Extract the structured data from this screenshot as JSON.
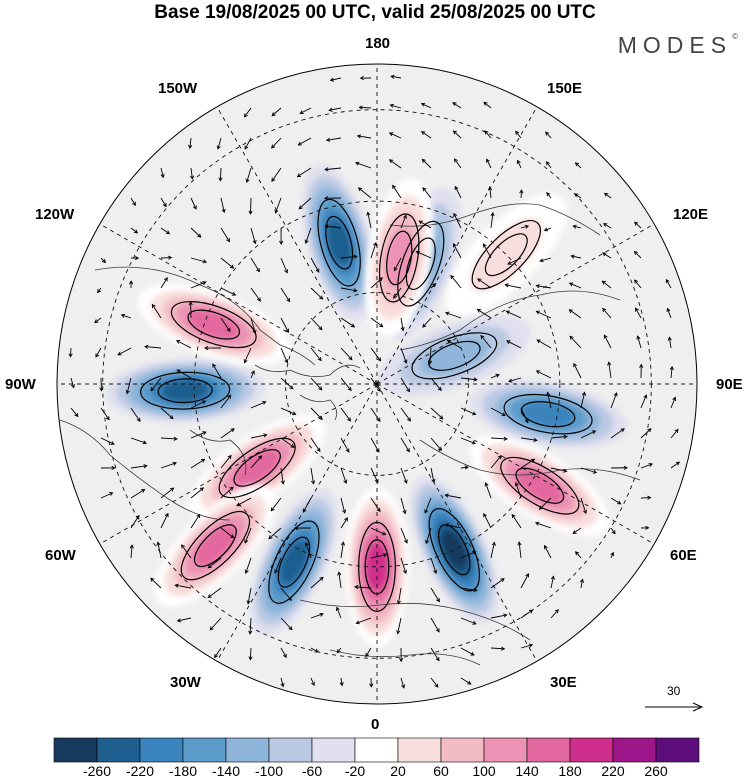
{
  "title": "Base 19/08/2025 00 UTC, valid 25/08/2025 00 UTC",
  "brand": {
    "name": "MODES",
    "mark": "©"
  },
  "longitude_labels": {
    "top": "180",
    "top_left": "150W",
    "top_right": "150E",
    "upper_left": "120W",
    "upper_right": "120E",
    "left": "90W",
    "right": "90E",
    "lower_left": "60W",
    "lower_right": "60E",
    "bottom_left": "30W",
    "bottom_right": "30E",
    "bottom": "0"
  },
  "vector_scale": {
    "label": "30"
  },
  "colorbar": {
    "colors": [
      "#173a5e",
      "#1f5f8f",
      "#3a83bd",
      "#5b9ccb",
      "#8fb6da",
      "#b9c9e3",
      "#e0e0ef",
      "#ffffff",
      "#f8dedc",
      "#f3bcc5",
      "#ec93b5",
      "#e3679f",
      "#cf2f8c",
      "#9d168a",
      "#5c0f7a"
    ],
    "tick_labels": [
      "-260",
      "-220",
      "-180",
      "-140",
      "-100",
      "-60",
      "-20",
      "20",
      "60",
      "100",
      "140",
      "180",
      "220",
      "260"
    ]
  },
  "anomaly_centers": [
    {
      "lon_deg": -165,
      "lat_deg": 58,
      "value": -200
    },
    {
      "lon_deg": -110,
      "lat_deg": 52,
      "value": 180
    },
    {
      "lon_deg": -88,
      "lat_deg": 48,
      "value": -220
    },
    {
      "lon_deg": -55,
      "lat_deg": 58,
      "value": 170
    },
    {
      "lon_deg": -45,
      "lat_deg": 40,
      "value": 150
    },
    {
      "lon_deg": -25,
      "lat_deg": 47,
      "value": -190
    },
    {
      "lon_deg": 0,
      "lat_deg": 50,
      "value": 200
    },
    {
      "lon_deg": 25,
      "lat_deg": 50,
      "value": -230
    },
    {
      "lon_deg": 58,
      "lat_deg": 48,
      "value": 170
    },
    {
      "lon_deg": 80,
      "lat_deg": 52,
      "value": -150
    },
    {
      "lon_deg": 110,
      "lat_deg": 72,
      "value": -80
    },
    {
      "lon_deg": 160,
      "lat_deg": 62,
      "value": -110
    },
    {
      "lon_deg": 170,
      "lat_deg": 62,
      "value": 140
    },
    {
      "lon_deg": 135,
      "lat_deg": 50,
      "value": 60
    }
  ]
}
